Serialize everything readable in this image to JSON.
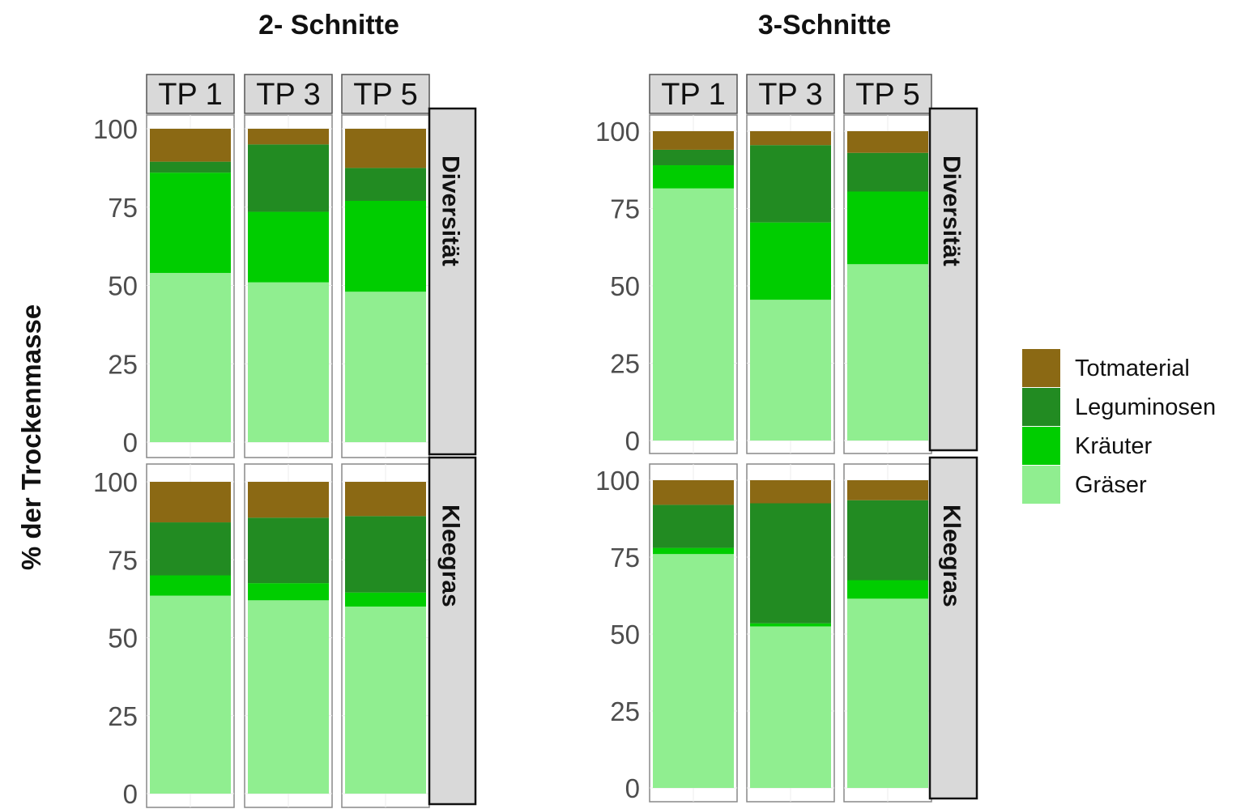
{
  "y_axis_label": "% der Trockenmasse",
  "colors": {
    "Totmaterial": "#8B6914",
    "Leguminosen": "#228B22",
    "Kräuter": "#00CD00",
    "Gräser": "#90EE90"
  },
  "chart_data": [
    {
      "type": "bar",
      "stacked": true,
      "title": "2- Schnitte",
      "facet_columns": [
        "TP 1",
        "TP 3",
        "TP 5"
      ],
      "facet_rows": [
        "Diversität",
        "Kleegras"
      ],
      "ylabel": "% der Trockenmasse",
      "ylim": [
        0,
        100
      ],
      "yticks": [
        0,
        25,
        50,
        75,
        100
      ],
      "legend": [
        "Totmaterial",
        "Leguminosen",
        "Kräuter",
        "Gräser"
      ],
      "panels": [
        {
          "row": "Diversität",
          "column": "TP 1",
          "values": {
            "Gräser": 54,
            "Kräuter": 32,
            "Leguminosen": 3.5,
            "Totmaterial": 10.5
          }
        },
        {
          "row": "Diversität",
          "column": "TP 3",
          "values": {
            "Gräser": 51,
            "Kräuter": 22.5,
            "Leguminosen": 21.5,
            "Totmaterial": 5
          }
        },
        {
          "row": "Diversität",
          "column": "TP 5",
          "values": {
            "Gräser": 48,
            "Kräuter": 29,
            "Leguminosen": 10.5,
            "Totmaterial": 12.5
          }
        },
        {
          "row": "Kleegras",
          "column": "TP 1",
          "values": {
            "Gräser": 63.5,
            "Kräuter": 6.5,
            "Leguminosen": 17,
            "Totmaterial": 13
          }
        },
        {
          "row": "Kleegras",
          "column": "TP 3",
          "values": {
            "Gräser": 62,
            "Kräuter": 5.5,
            "Leguminosen": 21,
            "Totmaterial": 11.5
          }
        },
        {
          "row": "Kleegras",
          "column": "TP 5",
          "values": {
            "Gräser": 60,
            "Kräuter": 4.5,
            "Leguminosen": 24.5,
            "Totmaterial": 11
          }
        }
      ]
    },
    {
      "type": "bar",
      "stacked": true,
      "title": "3-Schnitte",
      "facet_columns": [
        "TP 1",
        "TP 3",
        "TP 5"
      ],
      "facet_rows": [
        "Diversität",
        "Kleegras"
      ],
      "ylabel": "% der Trockenmasse",
      "ylim": [
        0,
        100
      ],
      "yticks": [
        0,
        25,
        50,
        75,
        100
      ],
      "legend": [
        "Totmaterial",
        "Leguminosen",
        "Kräuter",
        "Gräser"
      ],
      "panels": [
        {
          "row": "Diversität",
          "column": "TP 1",
          "values": {
            "Gräser": 81.5,
            "Kräuter": 7.5,
            "Leguminosen": 5,
            "Totmaterial": 6
          }
        },
        {
          "row": "Diversität",
          "column": "TP 3",
          "values": {
            "Gräser": 45.5,
            "Kräuter": 25,
            "Leguminosen": 25,
            "Totmaterial": 4.5
          }
        },
        {
          "row": "Diversität",
          "column": "TP 5",
          "values": {
            "Gräser": 57,
            "Kräuter": 23.5,
            "Leguminosen": 12.5,
            "Totmaterial": 7
          }
        },
        {
          "row": "Kleegras",
          "column": "TP 1",
          "values": {
            "Gräser": 76,
            "Kräuter": 2,
            "Leguminosen": 14,
            "Totmaterial": 8
          }
        },
        {
          "row": "Kleegras",
          "column": "TP 3",
          "values": {
            "Gräser": 52.5,
            "Kräuter": 1,
            "Leguminosen": 39,
            "Totmaterial": 7.5
          }
        },
        {
          "row": "Kleegras",
          "column": "TP 5",
          "values": {
            "Gräser": 61.5,
            "Kräuter": 6,
            "Leguminosen": 26,
            "Totmaterial": 6.5
          }
        }
      ]
    }
  ]
}
